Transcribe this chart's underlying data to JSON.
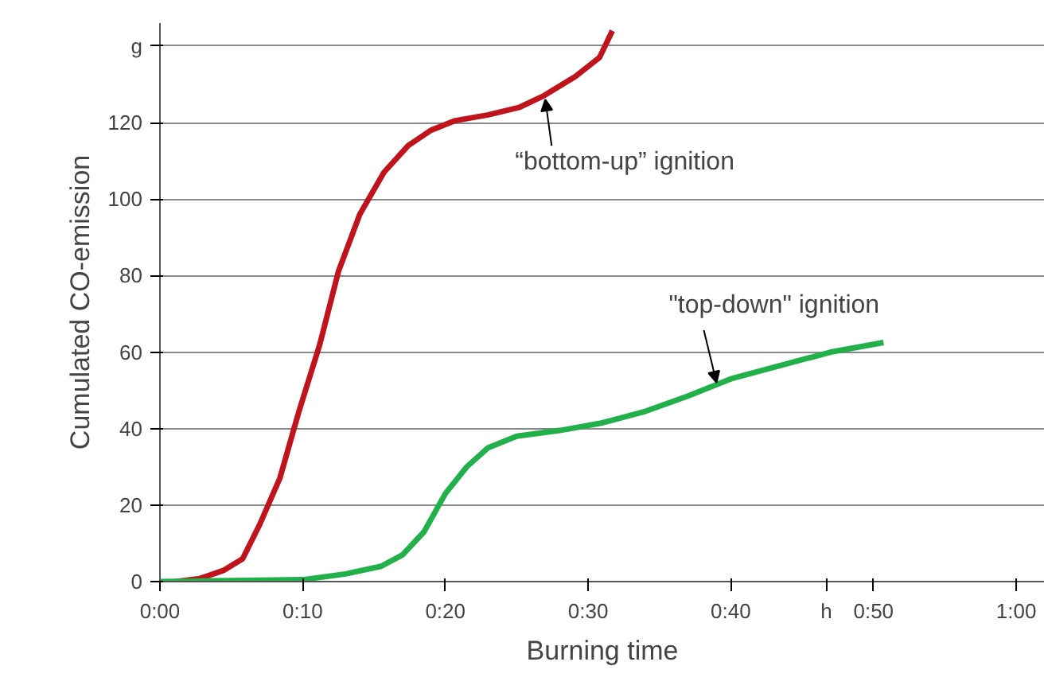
{
  "chart_data": {
    "type": "line",
    "xlabel": "Burning time",
    "ylabel": "Cumulated CO-emission",
    "xlim": [
      0,
      62
    ],
    "ylim": [
      0,
      146
    ],
    "xticks": [
      {
        "value": 0,
        "label": "0:00"
      },
      {
        "value": 10,
        "label": "0:10"
      },
      {
        "value": 20,
        "label": "0:20"
      },
      {
        "value": 30,
        "label": "0:30"
      },
      {
        "value": 40,
        "label": "0:40"
      },
      {
        "value": 50,
        "label": "0:50"
      },
      {
        "value": 46.7,
        "label": "h"
      },
      {
        "value": 60,
        "label": "1:00"
      }
    ],
    "yticks": [
      0,
      20,
      40,
      60,
      80,
      100,
      120,
      {
        "value": 140,
        "label": "g"
      }
    ],
    "grid": "y",
    "marker": "none",
    "line_style": "solid",
    "annotations": [
      {
        "text": "“bottom-up” ignition",
        "x": 27,
        "y": 126
      },
      {
        "text": "\"top-down\" ignition",
        "x": 39,
        "y": 52
      }
    ],
    "series": [
      {
        "color": "#c0141c",
        "x": [
          1.1,
          2.8,
          4.5,
          5.8,
          7,
          8.4,
          9.7,
          11.2,
          12.5,
          14,
          15.7,
          17.4,
          19,
          20.7,
          23,
          25.2,
          26.9,
          29.1,
          30.8,
          31.7
        ],
        "values": [
          0,
          0.8,
          3,
          6,
          15,
          27,
          44,
          62,
          81,
          96,
          107,
          114,
          118,
          120.5,
          122,
          124,
          127,
          132,
          137,
          144
        ]
      },
      {
        "color": "#22b04b",
        "x": [
          0,
          10,
          13,
          15.5,
          17,
          18.5,
          20,
          21.5,
          23,
          25,
          28,
          31,
          34,
          37,
          40,
          44,
          47,
          50.7
        ],
        "values": [
          0,
          0.5,
          2,
          4,
          7,
          13,
          23,
          30,
          35,
          38,
          39.5,
          41.5,
          44.5,
          48.5,
          53,
          57,
          60,
          62.5
        ]
      }
    ]
  }
}
